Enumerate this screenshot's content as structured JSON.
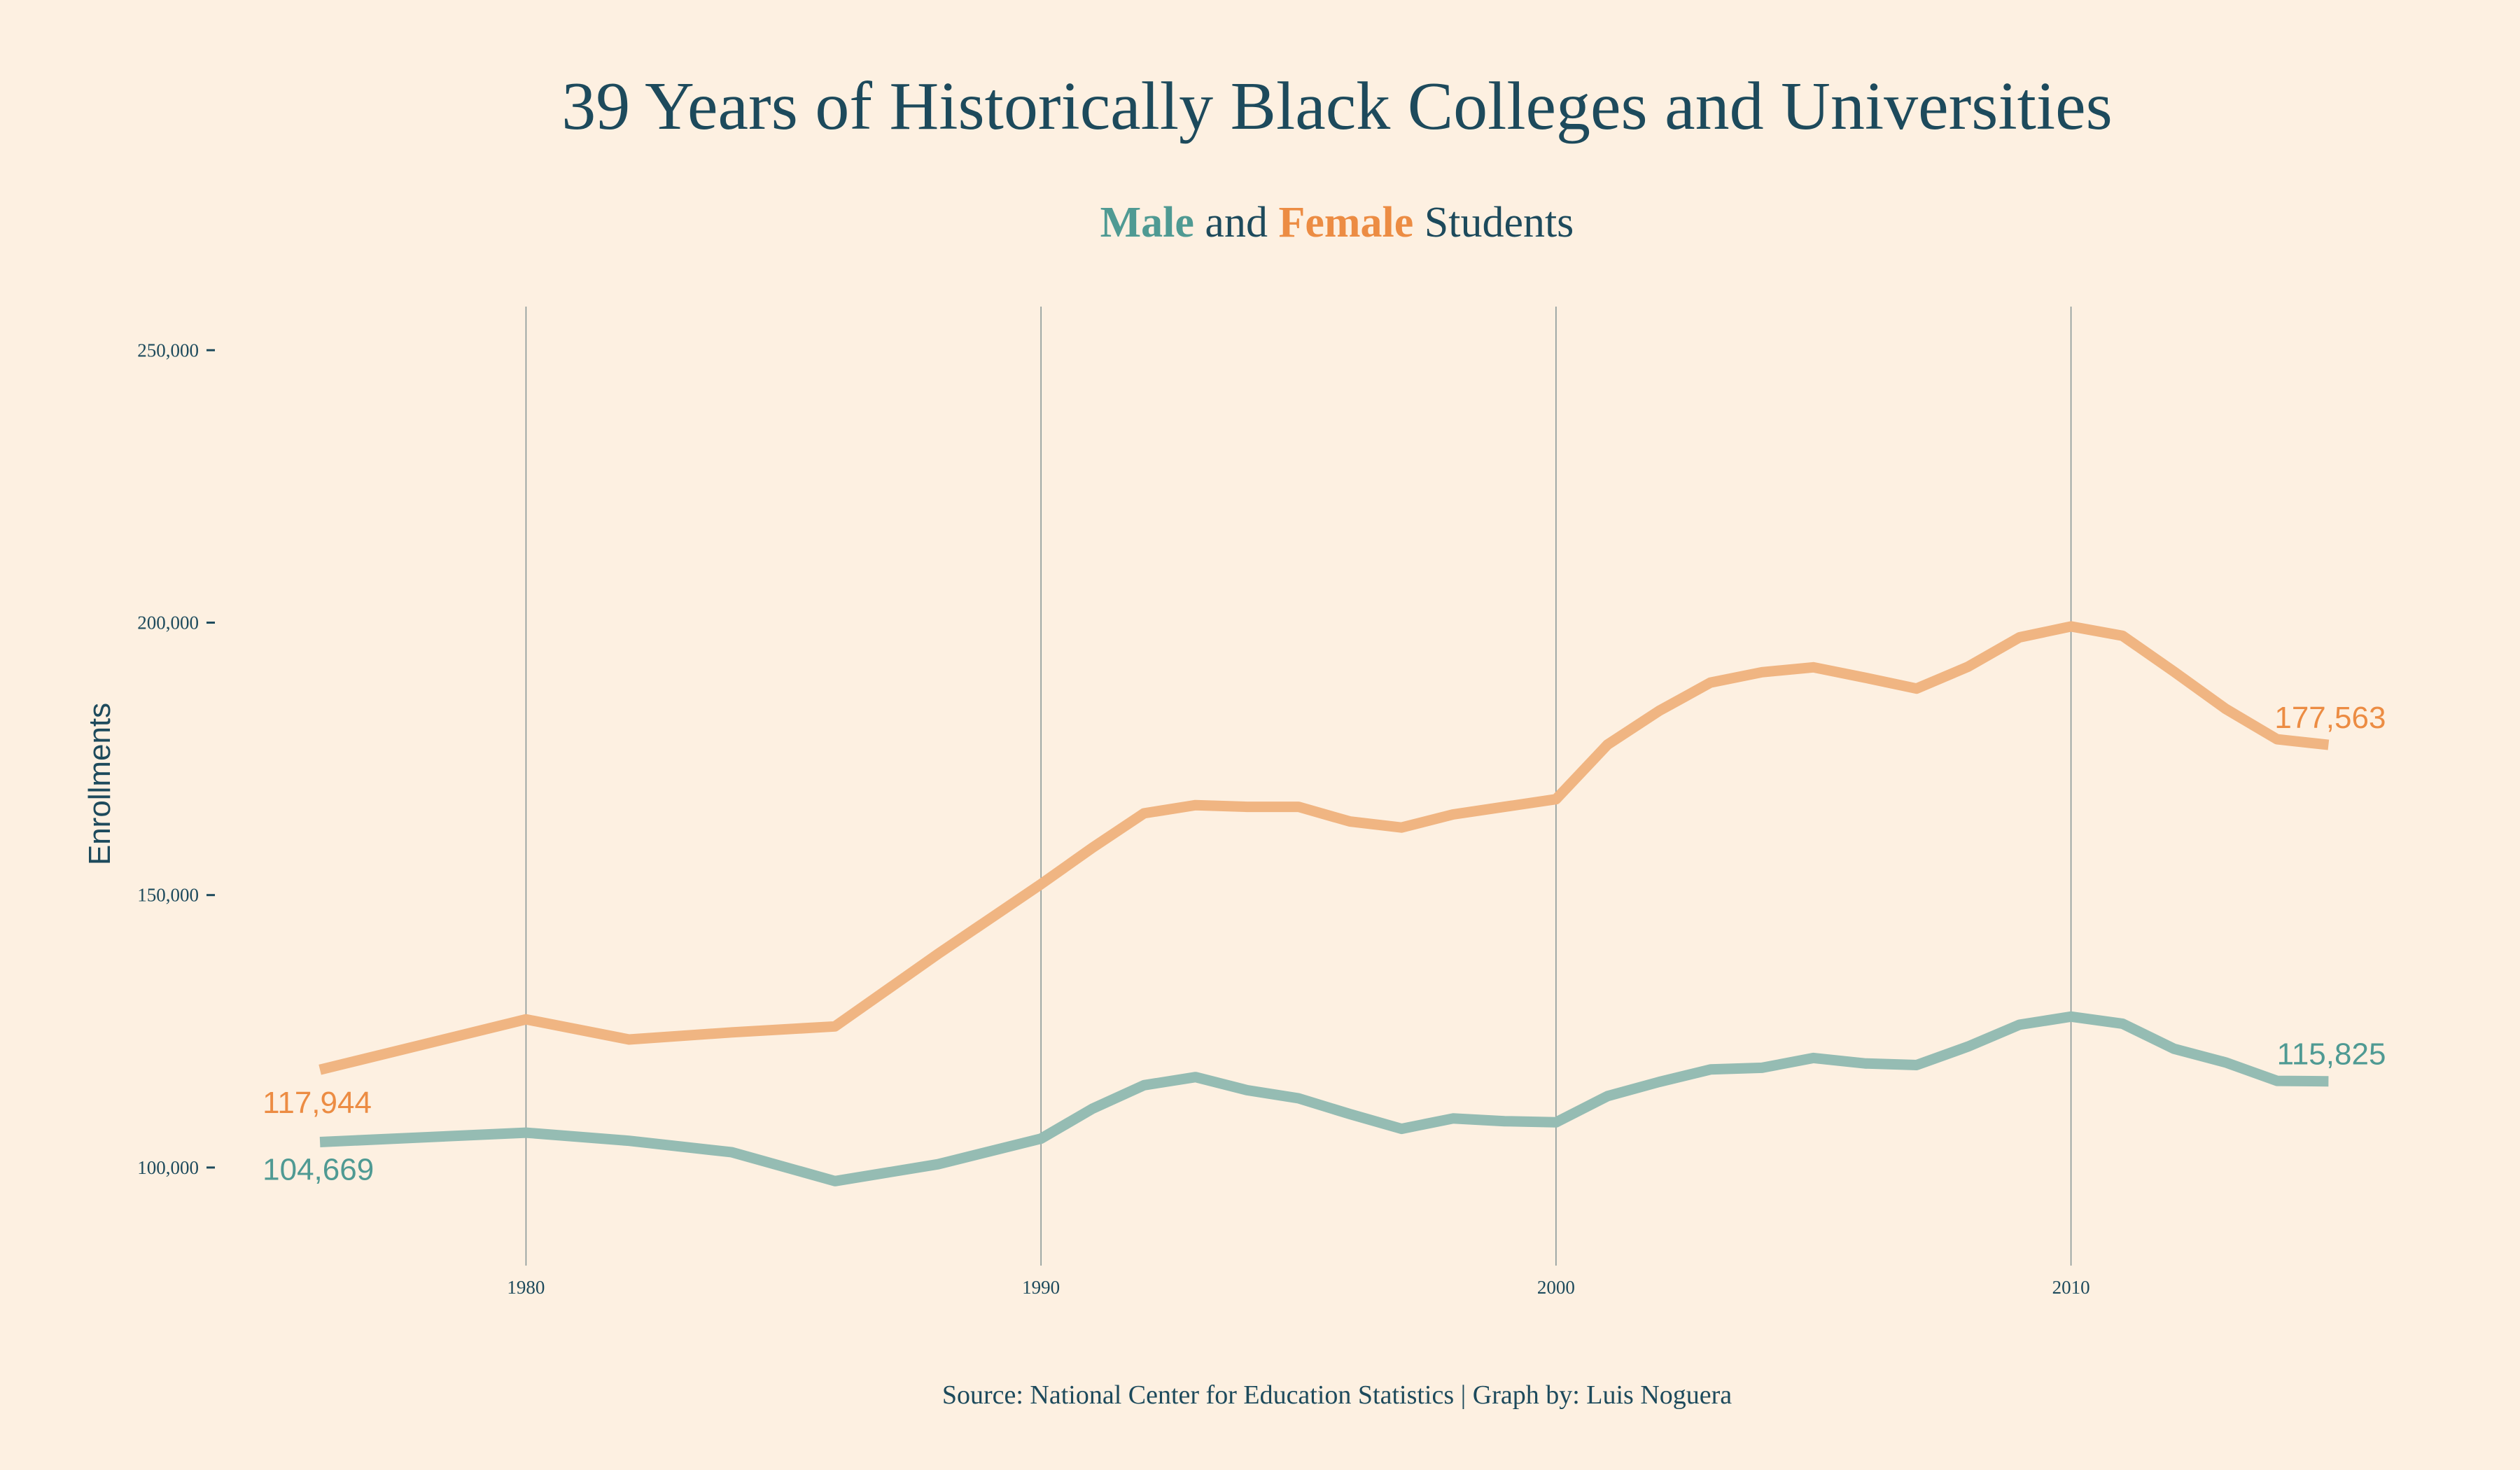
{
  "chart_data": {
    "type": "line",
    "title": "39 Years of Historically Black Colleges and Universities",
    "subtitle": {
      "male_word": "Male",
      "and_word": "and",
      "female_word": "Female",
      "students_word": "Students"
    },
    "ylabel": "Enrollments",
    "xlabel": "",
    "caption": "Source: National Center for Education Statistics | Graph by: Luis Noguera",
    "xlim": [
      1974,
      2016
    ],
    "ylim": [
      82000,
      258000
    ],
    "x_ticks": [
      1980,
      1990,
      2000,
      2010
    ],
    "x_tick_labels": [
      "1980",
      "1990",
      "2000",
      "2010"
    ],
    "y_ticks": [
      100000,
      150000,
      200000,
      250000
    ],
    "y_tick_labels": [
      "100,000",
      "150,000",
      "200,000",
      "250,000"
    ],
    "grid": "vertical-major",
    "colors": {
      "background": "#fdf0e1",
      "text": "#1d4a5c",
      "male_line": "#95bcb3",
      "female_line": "#f0b582",
      "male_label": "#4f9a93",
      "female_label": "#ec8c43",
      "grid": "#8a9898"
    },
    "x": [
      1976,
      1980,
      1982,
      1984,
      1986,
      1988,
      1990,
      1991,
      1992,
      1993,
      1994,
      1995,
      1996,
      1997,
      1998,
      1999,
      2000,
      2001,
      2002,
      2003,
      2004,
      2005,
      2006,
      2007,
      2008,
      2009,
      2010,
      2011,
      2012,
      2013,
      2014,
      2015
    ],
    "series": [
      {
        "name": "Male",
        "values": [
          104669,
          106400,
          104900,
          102800,
          97500,
          100600,
          105300,
          110800,
          115100,
          116600,
          114200,
          112700,
          109800,
          107100,
          109000,
          108500,
          108300,
          113100,
          115700,
          118000,
          118300,
          120100,
          119100,
          118800,
          122200,
          126200,
          127700,
          126400,
          121800,
          119300,
          115900,
          115825
        ],
        "end_label": "115,825",
        "start_label": "104,669"
      },
      {
        "name": "Female",
        "values": [
          117944,
          127200,
          123500,
          124800,
          125900,
          139200,
          152000,
          158700,
          165000,
          166500,
          166200,
          166200,
          163500,
          162400,
          164800,
          166200,
          167600,
          177600,
          183800,
          189000,
          190900,
          191800,
          189900,
          187900,
          191900,
          197300,
          199300,
          197600,
          191000,
          184200,
          178600,
          177563
        ],
        "end_label": "177,563",
        "start_label": "117,944"
      }
    ]
  }
}
